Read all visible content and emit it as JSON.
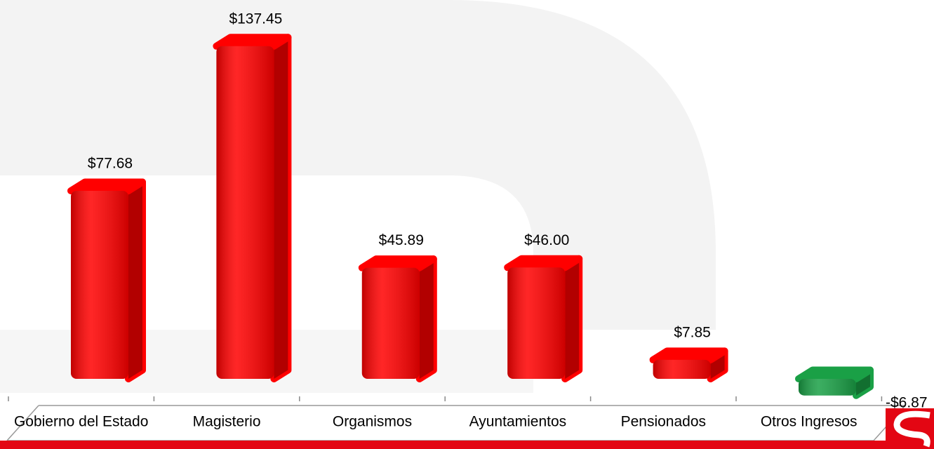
{
  "chart_data": {
    "type": "bar3d",
    "categories": [
      "Gobierno del Estado",
      "Magisterio",
      "Organismos",
      "Ayuntamientos",
      "Pensionados",
      "Otros Ingresos"
    ],
    "values": [
      77.68,
      137.45,
      45.89,
      46.0,
      7.85,
      -6.87
    ],
    "value_labels": [
      "$77.68",
      "$137.45",
      "$45.89",
      "$46.00",
      "$7.85",
      "-$6.87"
    ],
    "colors": [
      "#ff0000",
      "#ff0000",
      "#ff0000",
      "#ff0000",
      "#ff0000",
      "#1aa046"
    ]
  }
}
